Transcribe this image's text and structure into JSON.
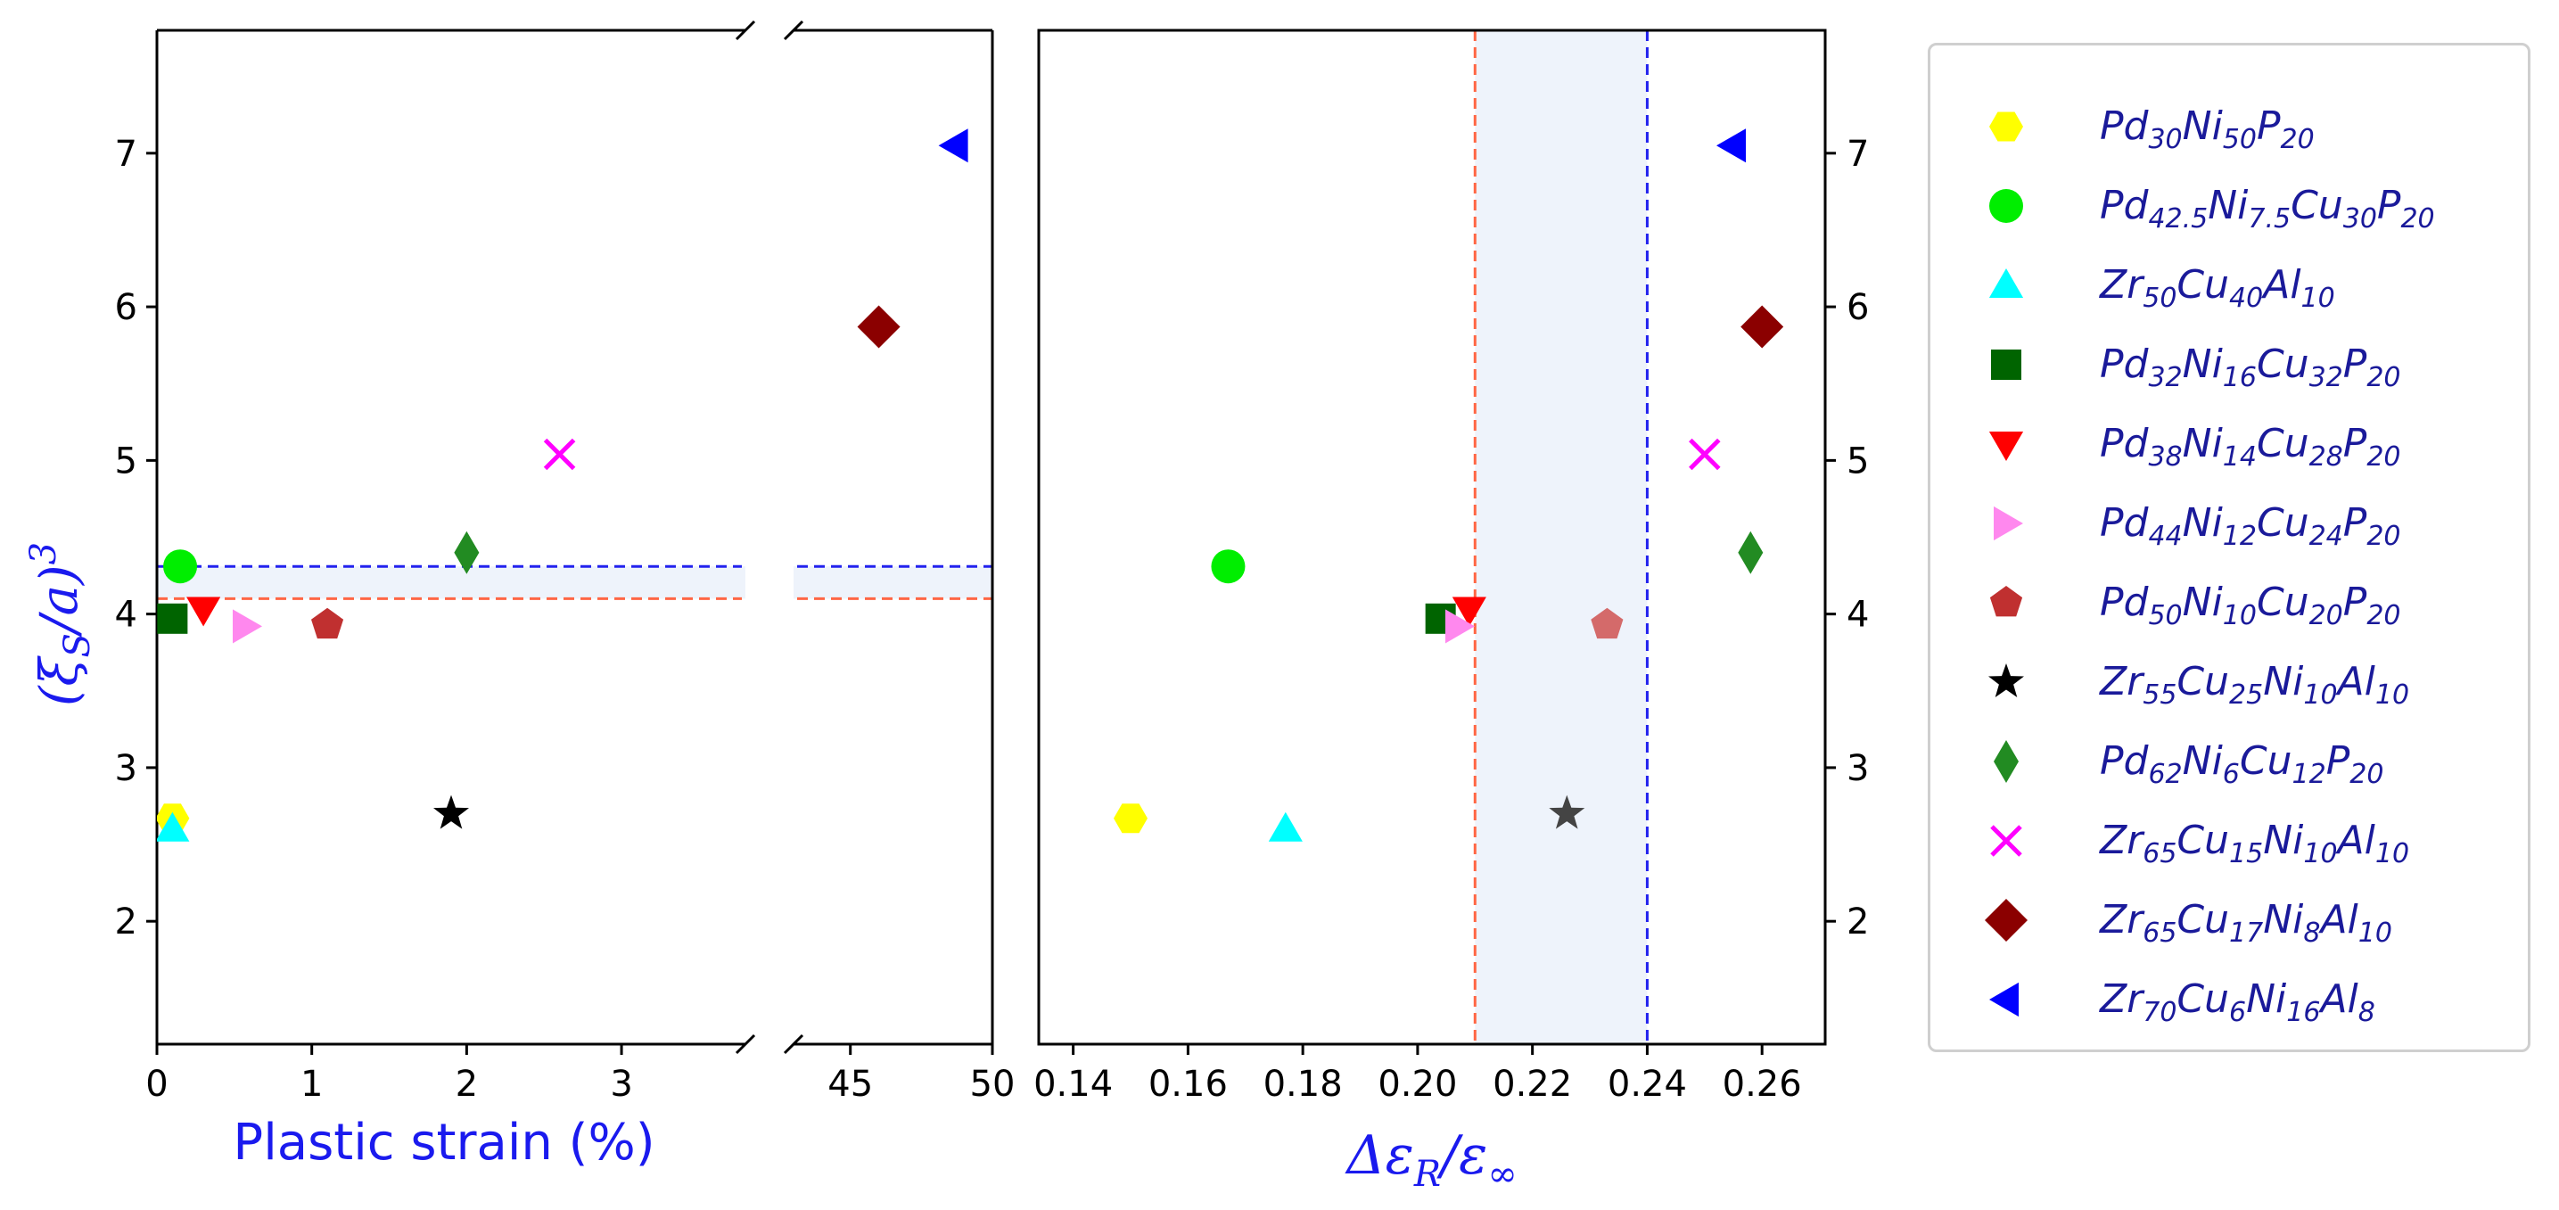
{
  "chart_data": [
    {
      "type": "scatter",
      "panel": "left",
      "xlabel": "Plastic strain (%)",
      "ylabel": "(ξS/a)³",
      "ylabel_parts": {
        "open": "(",
        "xi": "ξ",
        "sub": "S",
        "slash": "/a)",
        "sup": "3"
      },
      "axis_break": true,
      "segments": [
        {
          "xlim": [
            0,
            3.8
          ],
          "xticks": [
            0,
            1,
            2,
            3
          ],
          "xtick_labels": [
            "0",
            "1",
            "2",
            "3"
          ]
        },
        {
          "xlim": [
            43,
            50
          ],
          "xticks": [
            45,
            50
          ],
          "xtick_labels": [
            "45",
            "50"
          ]
        }
      ],
      "ylim": [
        1.2,
        7.8
      ],
      "yticks": [
        2,
        3,
        4,
        5,
        6,
        7
      ],
      "ytick_labels": [
        "2",
        "3",
        "4",
        "5",
        "6",
        "7"
      ],
      "reference_lines": [
        {
          "y": 4.31,
          "color": "#2222ee",
          "style": "dashed"
        },
        {
          "y": 4.1,
          "color": "#ff6644",
          "style": "dashed"
        }
      ],
      "shaded_band": {
        "y_range": [
          4.1,
          4.31
        ],
        "color": "#eef3fb"
      },
      "points": [
        {
          "series": "Pd30Ni50P20",
          "x": 0.1,
          "y": 2.67
        },
        {
          "series": "Pd42.5Ni7.5Cu30P20",
          "x": 0.15,
          "y": 4.31
        },
        {
          "series": "Zr50Cu40Al10",
          "x": 0.1,
          "y": 2.6
        },
        {
          "series": "Pd32Ni16Cu32P20",
          "x": 0.1,
          "y": 3.97
        },
        {
          "series": "Pd38Ni14Cu28P20",
          "x": 0.3,
          "y": 4.03
        },
        {
          "series": "Pd44Ni12Cu24P20",
          "x": 0.57,
          "y": 3.92
        },
        {
          "series": "Pd50Ni10Cu20P20",
          "x": 1.1,
          "y": 3.93
        },
        {
          "series": "Zr55Cu25Ni10Al10",
          "x": 1.9,
          "y": 2.7
        },
        {
          "series": "Pd62Ni6Cu12P20",
          "x": 2.0,
          "y": 4.4
        },
        {
          "series": "Zr65Cu15Ni10Al10",
          "x": 2.6,
          "y": 5.04
        },
        {
          "series": "Zr65Cu17Ni8Al10",
          "x": 46.0,
          "y": 5.87
        },
        {
          "series": "Zr70Cu6Ni16Al8",
          "x": 48.7,
          "y": 7.05
        }
      ]
    },
    {
      "type": "scatter",
      "panel": "right",
      "xlabel": "Δε_R/ε_∞",
      "xlabel_parts": {
        "delta": "Δε",
        "sub": "R",
        "slash": "/ε",
        "sub2": "∞"
      },
      "xlim": [
        0.134,
        0.271
      ],
      "xticks": [
        0.14,
        0.16,
        0.18,
        0.2,
        0.22,
        0.24,
        0.26
      ],
      "xtick_labels": [
        "0.14",
        "0.16",
        "0.18",
        "0.20",
        "0.22",
        "0.24",
        "0.26"
      ],
      "ylim": [
        1.2,
        7.8
      ],
      "yticks": [
        2,
        3,
        4,
        5,
        6,
        7
      ],
      "ytick_labels": [
        "2",
        "3",
        "4",
        "5",
        "6",
        "7"
      ],
      "reference_lines": [
        {
          "x": 0.21,
          "color": "#ff6644",
          "style": "dashed"
        },
        {
          "x": 0.24,
          "color": "#2222ee",
          "style": "dashed"
        }
      ],
      "shaded_band": {
        "x_range": [
          0.21,
          0.24
        ],
        "color": "#eef3fb"
      },
      "points": [
        {
          "series": "Pd30Ni50P20",
          "x": 0.15,
          "y": 2.67
        },
        {
          "series": "Pd42.5Ni7.5Cu30P20",
          "x": 0.167,
          "y": 4.31
        },
        {
          "series": "Zr50Cu40Al10",
          "x": 0.177,
          "y": 2.6
        },
        {
          "series": "Pd32Ni16Cu32P20",
          "x": 0.204,
          "y": 3.97
        },
        {
          "series": "Pd38Ni14Cu28P20",
          "x": 0.209,
          "y": 4.03
        },
        {
          "series": "Pd44Ni12Cu24P20",
          "x": 0.207,
          "y": 3.92
        },
        {
          "series": "Pd50Ni10Cu20P20",
          "x": 0.233,
          "y": 3.93
        },
        {
          "series": "Zr55Cu25Ni10Al10",
          "x": 0.226,
          "y": 2.7
        },
        {
          "series": "Pd62Ni6Cu12P20",
          "x": 0.258,
          "y": 4.4
        },
        {
          "series": "Zr65Cu15Ni10Al10",
          "x": 0.25,
          "y": 5.04
        },
        {
          "series": "Zr65Cu17Ni8Al10",
          "x": 0.26,
          "y": 5.87
        },
        {
          "series": "Zr70Cu6Ni16Al8",
          "x": 0.255,
          "y": 7.05
        }
      ]
    }
  ],
  "series": [
    {
      "id": "Pd30Ni50P20",
      "parts": [
        [
          "Pd",
          "30"
        ],
        [
          "Ni",
          "50"
        ],
        [
          "P",
          "20"
        ]
      ],
      "marker": "hexagon",
      "color": "#ffff00"
    },
    {
      "id": "Pd42.5Ni7.5Cu30P20",
      "parts": [
        [
          "Pd",
          "42.5"
        ],
        [
          "Ni",
          "7.5"
        ],
        [
          "Cu",
          "30"
        ],
        [
          "P",
          "20"
        ]
      ],
      "marker": "circle",
      "color": "#00ee00"
    },
    {
      "id": "Zr50Cu40Al10",
      "parts": [
        [
          "Zr",
          "50"
        ],
        [
          "Cu",
          "40"
        ],
        [
          "Al",
          "10"
        ]
      ],
      "marker": "triangle-up",
      "color": "#00ffff"
    },
    {
      "id": "Pd32Ni16Cu32P20",
      "parts": [
        [
          "Pd",
          "32"
        ],
        [
          "Ni",
          "16"
        ],
        [
          "Cu",
          "32"
        ],
        [
          "P",
          "20"
        ]
      ],
      "marker": "square",
      "color": "#006400"
    },
    {
      "id": "Pd38Ni14Cu28P20",
      "parts": [
        [
          "Pd",
          "38"
        ],
        [
          "Ni",
          "14"
        ],
        [
          "Cu",
          "28"
        ],
        [
          "P",
          "20"
        ]
      ],
      "marker": "triangle-down",
      "color": "#ff0000"
    },
    {
      "id": "Pd44Ni12Cu24P20",
      "parts": [
        [
          "Pd",
          "44"
        ],
        [
          "Ni",
          "12"
        ],
        [
          "Cu",
          "24"
        ],
        [
          "P",
          "20"
        ]
      ],
      "marker": "triangle-right",
      "color": "#ff88ee"
    },
    {
      "id": "Pd50Ni10Cu20P20",
      "parts": [
        [
          "Pd",
          "50"
        ],
        [
          "Ni",
          "10"
        ],
        [
          "Cu",
          "20"
        ],
        [
          "P",
          "20"
        ]
      ],
      "marker": "pentagon",
      "color": "#c03030"
    },
    {
      "id": "Zr55Cu25Ni10Al10",
      "parts": [
        [
          "Zr",
          "55"
        ],
        [
          "Cu",
          "25"
        ],
        [
          "Ni",
          "10"
        ],
        [
          "Al",
          "10"
        ]
      ],
      "marker": "star",
      "color": "#000000"
    },
    {
      "id": "Pd62Ni6Cu12P20",
      "parts": [
        [
          "Pd",
          "62"
        ],
        [
          "Ni",
          "6"
        ],
        [
          "Cu",
          "12"
        ],
        [
          "P",
          "20"
        ]
      ],
      "marker": "thin-diamond",
      "color": "#228b22"
    },
    {
      "id": "Zr65Cu15Ni10Al10",
      "parts": [
        [
          "Zr",
          "65"
        ],
        [
          "Cu",
          "15"
        ],
        [
          "Ni",
          "10"
        ],
        [
          "Al",
          "10"
        ]
      ],
      "marker": "x",
      "color": "#ff00ff"
    },
    {
      "id": "Zr65Cu17Ni8Al10",
      "parts": [
        [
          "Zr",
          "65"
        ],
        [
          "Cu",
          "17"
        ],
        [
          "Ni",
          "8"
        ],
        [
          "Al",
          "10"
        ]
      ],
      "marker": "diamond",
      "color": "#8b0000"
    },
    {
      "id": "Zr70Cu6Ni16Al8",
      "parts": [
        [
          "Zr",
          "70"
        ],
        [
          "Cu",
          "6"
        ],
        [
          "Ni",
          "16"
        ],
        [
          "Al",
          "8"
        ]
      ],
      "marker": "triangle-left",
      "color": "#0000ff"
    }
  ],
  "right_panel_colors": {
    "Pd50Ni10Cu20P20": "#d46a6a",
    "Zr55Cu25Ni10Al10": "#444444"
  },
  "colors": {
    "axis_label": "#1a1aee",
    "legend_text": "#1a1a9a"
  }
}
